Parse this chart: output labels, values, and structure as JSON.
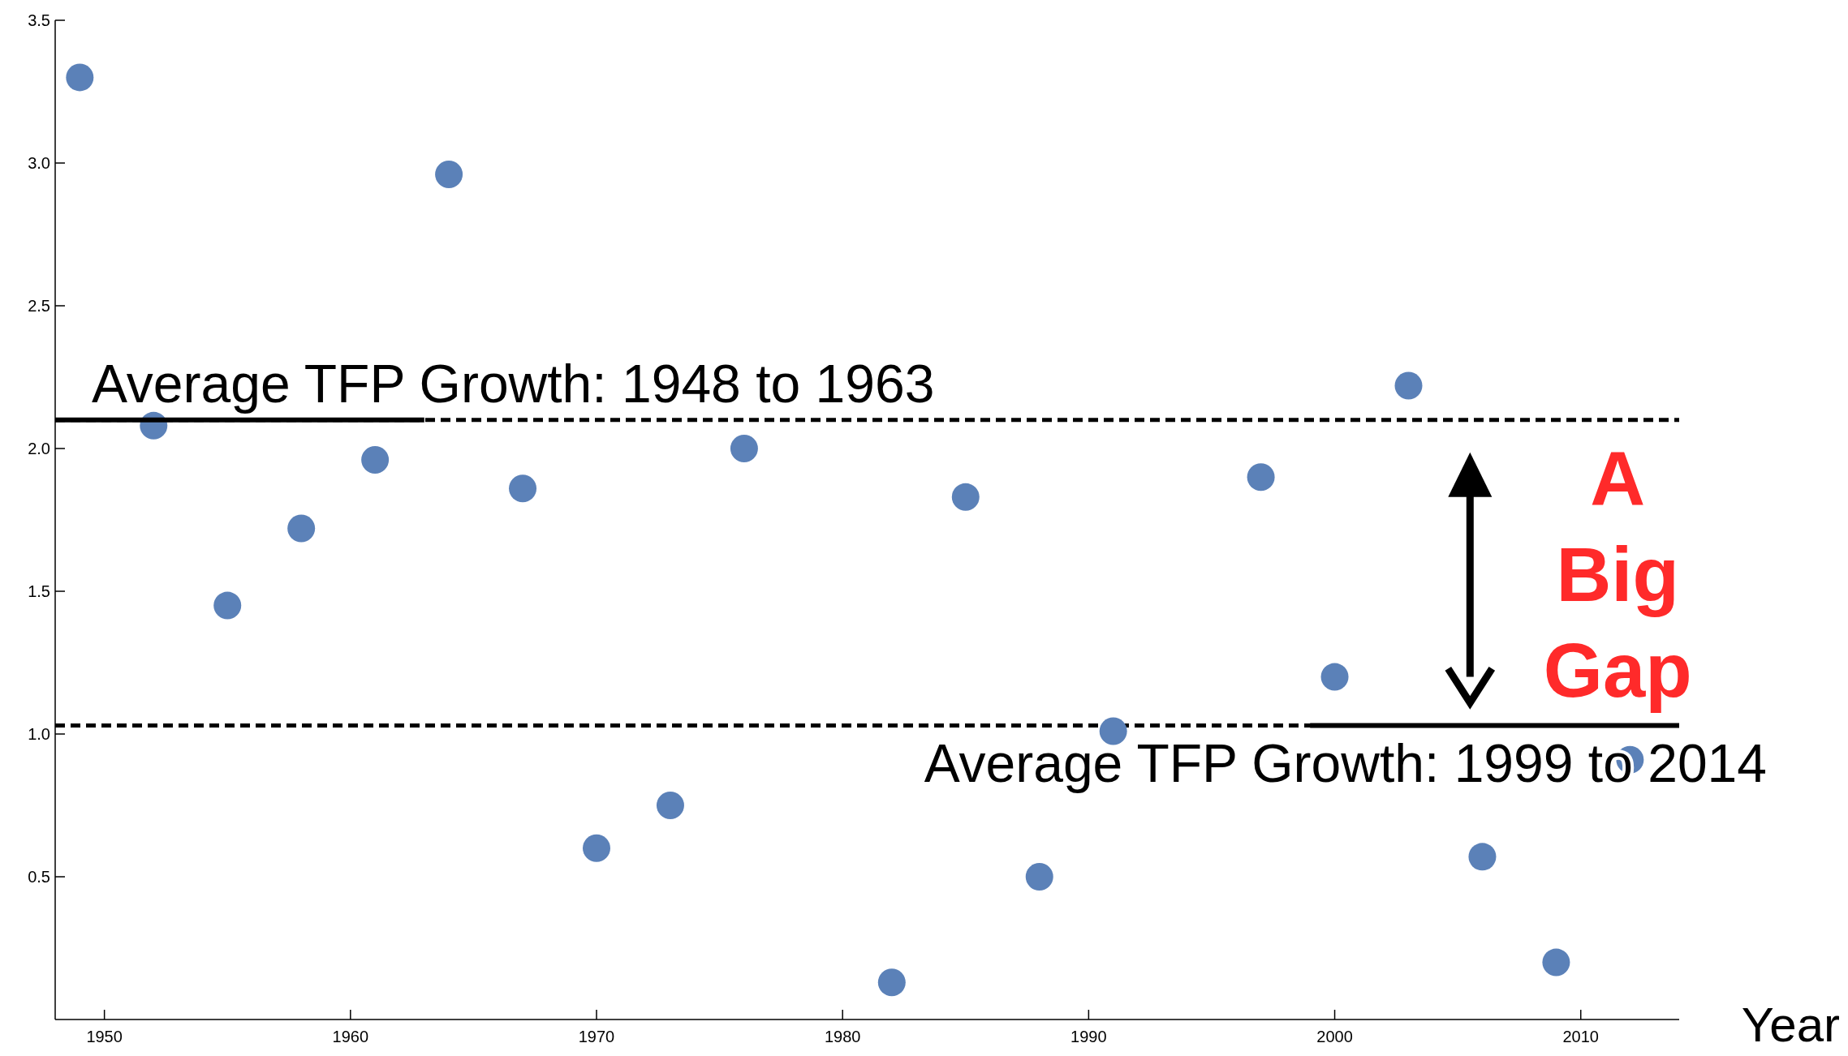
{
  "chart_data": {
    "type": "scatter",
    "xlabel": "Year",
    "x": [
      1949,
      1952,
      1955,
      1958,
      1961,
      1964,
      1967,
      1970,
      1973,
      1976,
      1982,
      1985,
      1988,
      1991,
      1997,
      2000,
      2003,
      2006,
      2009,
      2012
    ],
    "series": [
      {
        "color": "#5b81b8",
        "values": [
          3.3,
          2.08,
          1.45,
          1.72,
          1.96,
          2.96,
          1.86,
          0.6,
          0.75,
          2.0,
          0.13,
          1.83,
          0.5,
          1.01,
          1.9,
          1.2,
          2.22,
          0.57,
          0.2,
          0.91
        ]
      },
      {
        "type": "line",
        "color": "#000000",
        "x": [
          1948,
          1963
        ],
        "values": [
          2.1,
          2.1
        ]
      },
      {
        "type": "line",
        "color": "#000000",
        "x": [
          1999,
          2014
        ],
        "values": [
          1.03,
          1.03
        ]
      }
    ],
    "xlim": [
      1948,
      2014
    ],
    "ylim": [
      0,
      3.5
    ],
    "xticks": [
      1950,
      1960,
      1970,
      1980,
      1990,
      2000,
      2010
    ],
    "yticks": [
      0.5,
      {
        "value": 1,
        "label": "1.0"
      },
      1.5,
      {
        "value": 2,
        "label": "2.0"
      },
      2.5,
      {
        "value": 3,
        "label": "3.0"
      },
      3.5
    ],
    "ref_lines": [
      {
        "axis": "y",
        "value": 2.1,
        "color": "#000000",
        "line_style": "dashed"
      },
      {
        "axis": "y",
        "value": 1.03,
        "color": "#000000",
        "line_style": "dashed"
      }
    ],
    "annotations": [
      "Average TFP Growth: 1948 to 1963",
      "Average TFP Growth: 1999 to 2014",
      "A Big Gap"
    ],
    "grid": false
  }
}
